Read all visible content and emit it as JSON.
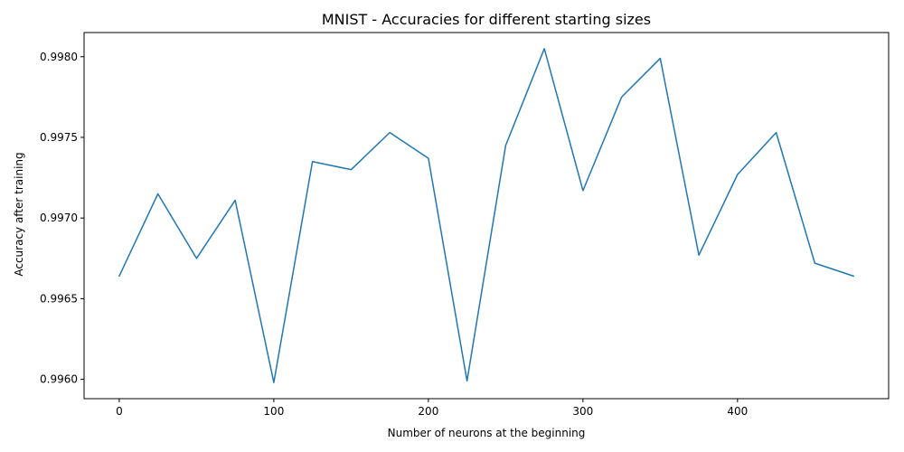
{
  "chart_data": {
    "type": "line",
    "title": "MNIST - Accuracies for different starting sizes",
    "xlabel": "Number of neurons at the beginning",
    "ylabel": "Accuracy after training",
    "xlim": [
      -22.75,
      497.75
    ],
    "ylim": [
      0.99588,
      0.99815
    ],
    "x_ticks": [
      0,
      100,
      200,
      300,
      400
    ],
    "x_tick_labels": [
      "0",
      "100",
      "200",
      "300",
      "400"
    ],
    "y_ticks": [
      0.996,
      0.9965,
      0.997,
      0.9975,
      0.998
    ],
    "y_tick_labels": [
      "0.9960",
      "0.9965",
      "0.9970",
      "0.9975",
      "0.9980"
    ],
    "grid": false,
    "series": [
      {
        "color": "#1f77b4",
        "x": [
          0,
          25,
          50,
          75,
          100,
          125,
          150,
          175,
          200,
          225,
          250,
          275,
          300,
          325,
          350,
          375,
          400,
          425,
          450,
          475
        ],
        "y": [
          0.99664,
          0.99715,
          0.99675,
          0.99711,
          0.99598,
          0.99735,
          0.9973,
          0.99753,
          0.99737,
          0.99599,
          0.99745,
          0.99805,
          0.99717,
          0.99775,
          0.99799,
          0.99677,
          0.99727,
          0.99753,
          0.99672,
          0.99664
        ]
      }
    ]
  }
}
